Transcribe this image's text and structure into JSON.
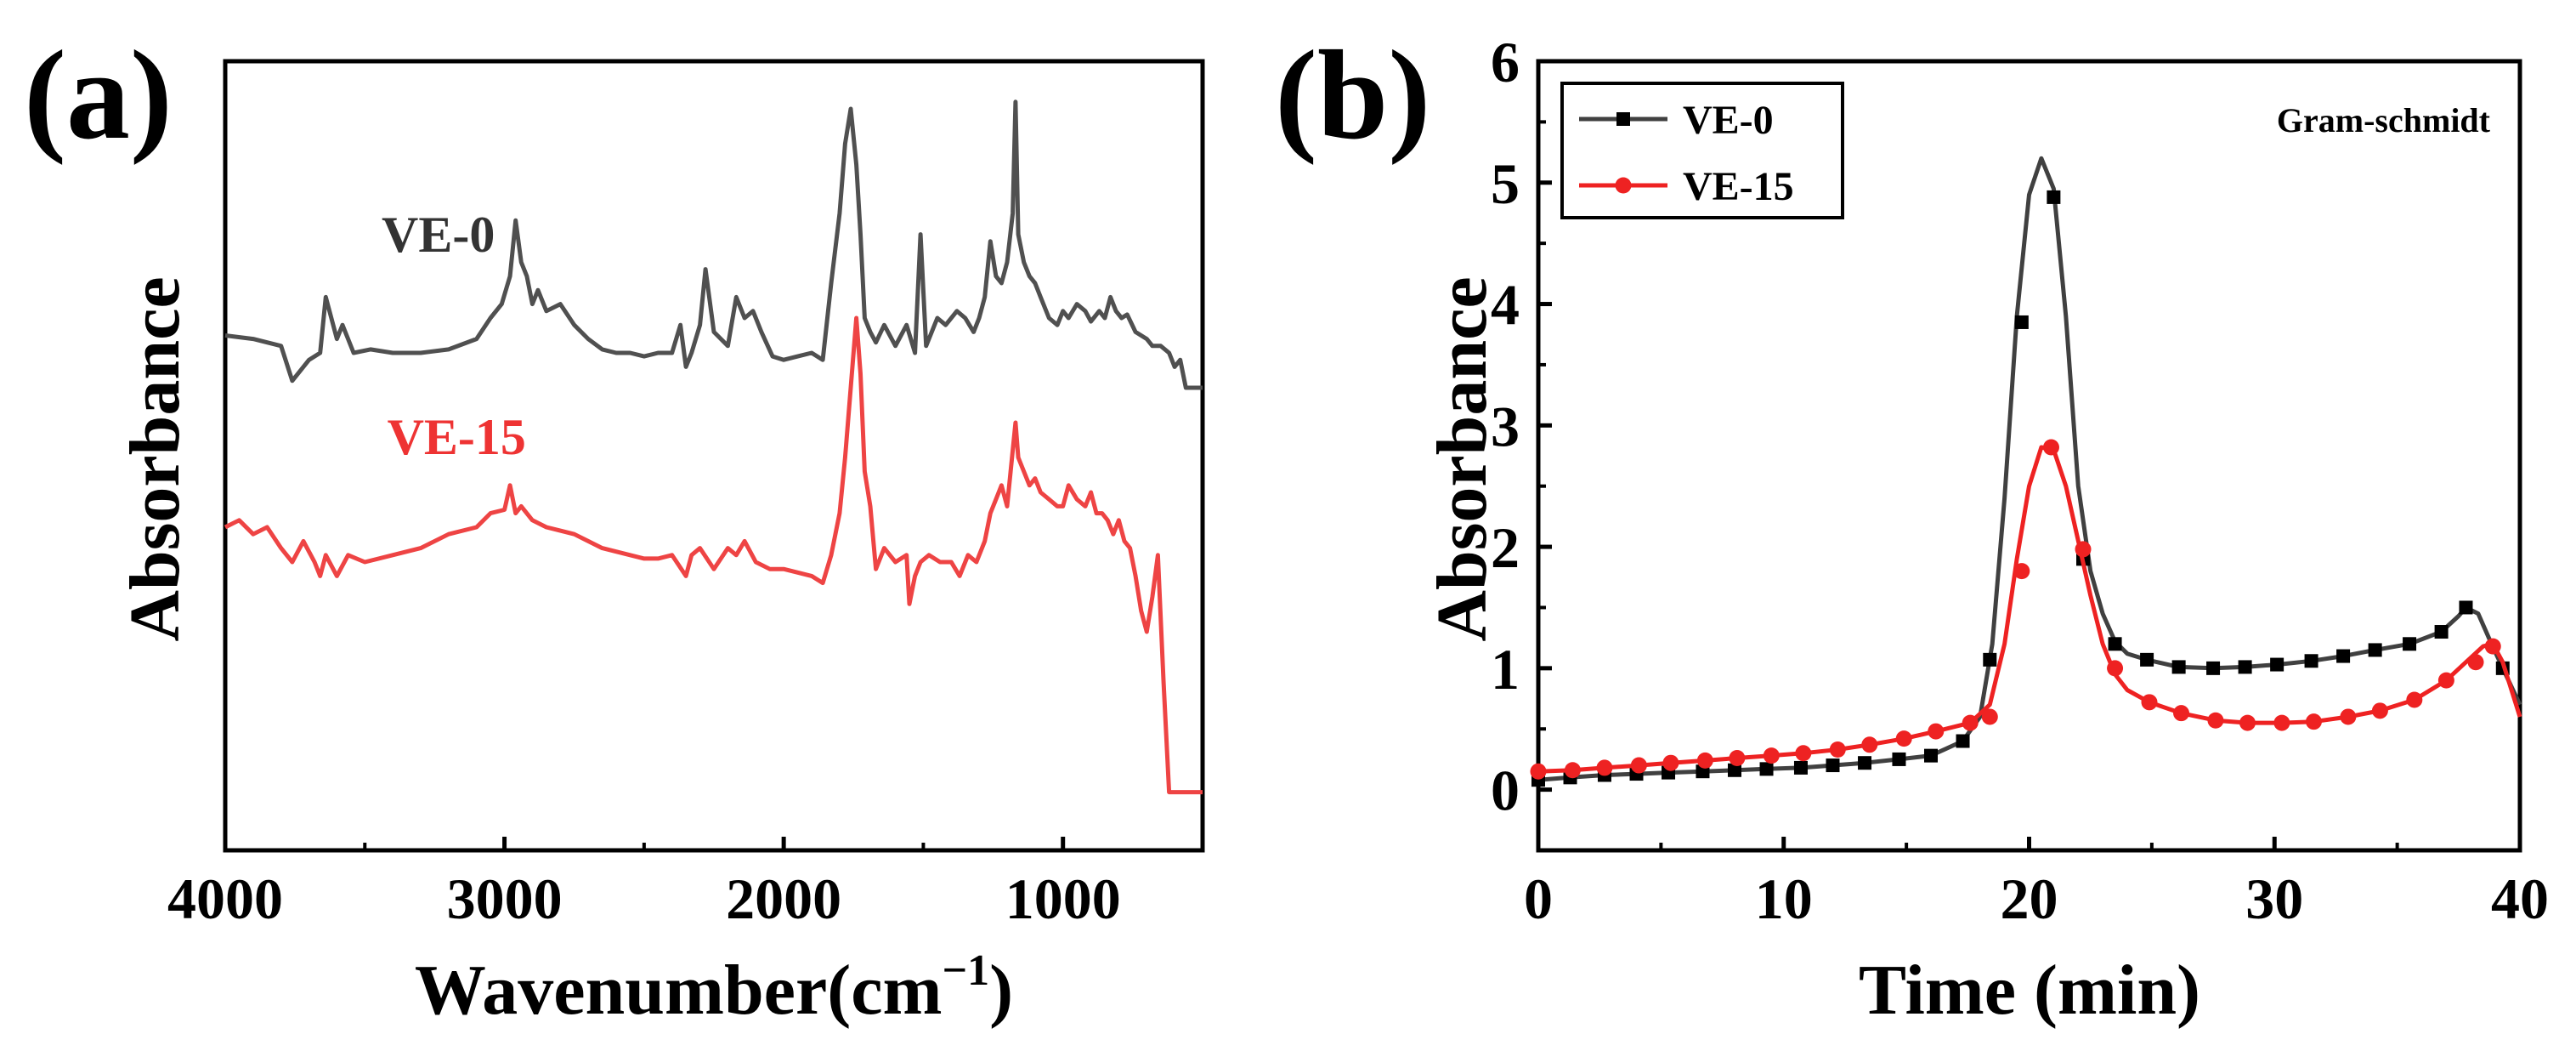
{
  "chart_data": [
    {
      "panel": "(a)",
      "type": "line",
      "xlabel": "Wavenumber(cm",
      "xlabel_sup": "−1",
      "xlabel_end": ")",
      "ylabel": "Absorbance",
      "xlim": [
        4000,
        500
      ],
      "xticks": [
        "4000",
        "3000",
        "2000",
        "1000"
      ],
      "xtick_values": [
        4000,
        3000,
        2000,
        1000
      ],
      "ylim": [
        0,
        10
      ],
      "yticks_shown": false,
      "series": [
        {
          "name": "VE-0",
          "color": "#505050",
          "x": [
            4000,
            3900,
            3800,
            3760,
            3700,
            3660,
            3640,
            3600,
            3580,
            3540,
            3480,
            3400,
            3300,
            3200,
            3100,
            3050,
            3010,
            2980,
            2960,
            2940,
            2920,
            2900,
            2880,
            2850,
            2800,
            2750,
            2700,
            2650,
            2600,
            2550,
            2500,
            2450,
            2400,
            2370,
            2350,
            2330,
            2300,
            2280,
            2250,
            2200,
            2170,
            2140,
            2110,
            2080,
            2040,
            2000,
            1950,
            1900,
            1860,
            1830,
            1800,
            1780,
            1760,
            1740,
            1725,
            1710,
            1690,
            1670,
            1640,
            1600,
            1560,
            1530,
            1510,
            1490,
            1470,
            1450,
            1420,
            1380,
            1350,
            1320,
            1300,
            1280,
            1260,
            1240,
            1220,
            1200,
            1180,
            1170,
            1160,
            1140,
            1120,
            1100,
            1080,
            1050,
            1020,
            1000,
            980,
            950,
            920,
            900,
            870,
            850,
            830,
            810,
            790,
            770,
            740,
            720,
            700,
            680,
            650,
            620,
            600,
            580,
            560,
            540,
            500
          ],
          "y": [
            6.75,
            6.7,
            6.6,
            6.1,
            6.4,
            6.5,
            7.3,
            6.7,
            6.9,
            6.5,
            6.55,
            6.5,
            6.5,
            6.55,
            6.7,
            7.0,
            7.2,
            7.6,
            8.4,
            7.8,
            7.6,
            7.2,
            7.4,
            7.1,
            7.2,
            6.9,
            6.7,
            6.55,
            6.5,
            6.5,
            6.45,
            6.5,
            6.5,
            6.9,
            6.3,
            6.5,
            6.9,
            7.7,
            6.8,
            6.6,
            7.3,
            7.0,
            7.1,
            6.8,
            6.45,
            6.4,
            6.45,
            6.5,
            6.4,
            7.5,
            8.5,
            9.5,
            10.0,
            9.2,
            8.2,
            7.0,
            6.8,
            6.65,
            6.9,
            6.6,
            6.9,
            6.5,
            8.2,
            6.6,
            6.8,
            7.0,
            6.9,
            7.1,
            7.0,
            6.8,
            7.0,
            7.3,
            8.1,
            7.6,
            7.5,
            7.8,
            8.5,
            10.1,
            8.2,
            7.8,
            7.6,
            7.5,
            7.3,
            7.0,
            6.9,
            7.1,
            7.0,
            7.2,
            7.1,
            6.95,
            7.1,
            7.0,
            7.3,
            7.1,
            7.0,
            7.05,
            6.8,
            6.75,
            6.7,
            6.6,
            6.6,
            6.5,
            6.3,
            6.4,
            6.0,
            6.0,
            6.0
          ]
        },
        {
          "name": "VE-15",
          "color": "#ee4444",
          "x": [
            4000,
            3950,
            3900,
            3850,
            3800,
            3760,
            3720,
            3680,
            3660,
            3640,
            3600,
            3560,
            3500,
            3400,
            3300,
            3200,
            3100,
            3050,
            3000,
            2980,
            2960,
            2940,
            2900,
            2850,
            2800,
            2750,
            2700,
            2650,
            2600,
            2550,
            2500,
            2450,
            2400,
            2350,
            2330,
            2300,
            2250,
            2200,
            2170,
            2140,
            2100,
            2050,
            2000,
            1950,
            1900,
            1860,
            1830,
            1800,
            1780,
            1760,
            1740,
            1725,
            1710,
            1690,
            1670,
            1640,
            1600,
            1560,
            1550,
            1530,
            1510,
            1480,
            1440,
            1400,
            1370,
            1340,
            1310,
            1280,
            1260,
            1240,
            1220,
            1200,
            1180,
            1170,
            1160,
            1140,
            1120,
            1100,
            1080,
            1050,
            1020,
            1000,
            980,
            950,
            920,
            900,
            880,
            860,
            840,
            820,
            800,
            780,
            760,
            740,
            720,
            700,
            680,
            660,
            640,
            620,
            600,
            580,
            560,
            540,
            500
          ],
          "y": [
            4.0,
            4.1,
            3.9,
            4.0,
            3.7,
            3.5,
            3.8,
            3.5,
            3.3,
            3.6,
            3.3,
            3.6,
            3.5,
            3.6,
            3.7,
            3.9,
            4.0,
            4.2,
            4.25,
            4.6,
            4.2,
            4.3,
            4.1,
            4.0,
            3.95,
            3.9,
            3.8,
            3.7,
            3.65,
            3.6,
            3.55,
            3.55,
            3.6,
            3.3,
            3.6,
            3.7,
            3.4,
            3.7,
            3.6,
            3.8,
            3.5,
            3.4,
            3.4,
            3.35,
            3.3,
            3.2,
            3.6,
            4.2,
            5.0,
            6.0,
            7.0,
            6.2,
            4.8,
            4.3,
            3.4,
            3.7,
            3.5,
            3.6,
            2.9,
            3.3,
            3.5,
            3.6,
            3.5,
            3.5,
            3.3,
            3.6,
            3.5,
            3.8,
            4.2,
            4.4,
            4.6,
            4.3,
            5.1,
            5.5,
            5.0,
            4.8,
            4.6,
            4.7,
            4.5,
            4.4,
            4.3,
            4.3,
            4.6,
            4.4,
            4.3,
            4.5,
            4.2,
            4.2,
            4.1,
            3.9,
            4.1,
            3.8,
            3.7,
            3.3,
            2.8,
            2.5,
            3.0,
            3.6,
            1.8,
            0.2,
            0.2,
            0.2,
            0.2,
            0.2,
            0.2
          ]
        }
      ],
      "annotations": [
        {
          "text": "VE-0",
          "color": "#333333",
          "x": 3440,
          "y": 7.95
        },
        {
          "text": "VE-15",
          "color": "#ee3333",
          "x": 3420,
          "y": 5.05
        }
      ]
    },
    {
      "panel": "(b)",
      "type": "line",
      "xlabel": "Time (min)",
      "ylabel": "Absorbance",
      "xlim": [
        0,
        40
      ],
      "ylim": [
        -0.5,
        6
      ],
      "xticks": [
        "0",
        "10",
        "20",
        "30",
        "40"
      ],
      "xtick_values": [
        0,
        10,
        20,
        30,
        40
      ],
      "yticks": [
        "0",
        "1",
        "2",
        "3",
        "4",
        "5",
        "6"
      ],
      "ytick_values": [
        0,
        1,
        2,
        3,
        4,
        5,
        6
      ],
      "annotation": "Gram-schmidt",
      "legend": {
        "position": "top-left",
        "entries": [
          "VE-0",
          "VE-15"
        ]
      },
      "series": [
        {
          "name": "VE-0",
          "color": "#404040",
          "marker": "square",
          "x": [
            0,
            1.3,
            2.7,
            4.0,
            5.3,
            6.7,
            8.0,
            9.3,
            10.7,
            12.0,
            13.3,
            14.7,
            16.0,
            17.3,
            18.0,
            18.5,
            19.0,
            19.5,
            20.0,
            20.5,
            21.0,
            21.5,
            22.0,
            22.5,
            23.0,
            23.5,
            24.0,
            24.8,
            26.1,
            27.5,
            28.8,
            30.1,
            31.5,
            32.8,
            34.1,
            35.5,
            36.8,
            37.5,
            37.8,
            38.3,
            38.8,
            39.3,
            40.0
          ],
          "y": [
            0.08,
            0.1,
            0.12,
            0.13,
            0.14,
            0.15,
            0.16,
            0.17,
            0.18,
            0.2,
            0.22,
            0.25,
            0.28,
            0.4,
            0.6,
            1.2,
            2.4,
            3.9,
            4.9,
            5.2,
            4.95,
            3.9,
            2.5,
            1.8,
            1.45,
            1.22,
            1.12,
            1.07,
            1.01,
            1.0,
            1.01,
            1.03,
            1.06,
            1.1,
            1.15,
            1.2,
            1.3,
            1.43,
            1.5,
            1.45,
            1.22,
            1.0,
            0.7
          ],
          "markers_x": [
            0,
            1.3,
            2.7,
            4.0,
            5.3,
            6.7,
            8.0,
            9.3,
            10.7,
            12.0,
            13.3,
            14.7,
            16.0,
            17.3,
            18.4,
            19.7,
            21.0,
            22.2,
            23.5,
            24.8,
            26.1,
            27.5,
            28.8,
            30.1,
            31.5,
            32.8,
            34.1,
            35.5,
            36.8,
            37.8,
            39.3
          ],
          "markers_y": [
            0.08,
            0.1,
            0.12,
            0.13,
            0.14,
            0.15,
            0.16,
            0.17,
            0.18,
            0.2,
            0.22,
            0.25,
            0.28,
            0.4,
            1.07,
            3.85,
            4.88,
            1.9,
            1.2,
            1.07,
            1.01,
            1.0,
            1.01,
            1.03,
            1.06,
            1.1,
            1.15,
            1.2,
            1.3,
            1.5,
            1.0
          ]
        },
        {
          "name": "VE-15",
          "color": "#ee2222",
          "marker": "circle",
          "x": [
            0,
            1.4,
            2.7,
            4.1,
            5.4,
            6.8,
            8.1,
            9.5,
            10.8,
            12.2,
            13.5,
            14.9,
            16.2,
            17.6,
            18.4,
            19.0,
            19.5,
            20.0,
            20.5,
            21.0,
            21.5,
            22.0,
            22.5,
            23.0,
            23.5,
            24.0,
            24.9,
            26.2,
            27.6,
            28.9,
            30.3,
            31.6,
            33.0,
            34.3,
            35.7,
            37.0,
            37.8,
            38.5,
            38.9,
            39.3,
            40.0
          ],
          "y": [
            0.15,
            0.16,
            0.18,
            0.2,
            0.22,
            0.24,
            0.26,
            0.28,
            0.3,
            0.33,
            0.37,
            0.42,
            0.48,
            0.55,
            0.7,
            1.2,
            1.9,
            2.5,
            2.82,
            2.8,
            2.5,
            2.05,
            1.6,
            1.2,
            0.95,
            0.82,
            0.72,
            0.63,
            0.57,
            0.55,
            0.55,
            0.56,
            0.6,
            0.65,
            0.74,
            0.9,
            1.05,
            1.18,
            1.2,
            1.05,
            0.6
          ],
          "markers_x": [
            0,
            1.4,
            2.7,
            4.1,
            5.4,
            6.8,
            8.1,
            9.5,
            10.8,
            12.2,
            13.5,
            14.9,
            16.2,
            17.6,
            18.4,
            19.7,
            20.9,
            22.2,
            23.5,
            24.9,
            26.2,
            27.6,
            28.9,
            30.3,
            31.6,
            33.0,
            34.3,
            35.7,
            37.0,
            38.2,
            38.9
          ],
          "markers_y": [
            0.15,
            0.16,
            0.18,
            0.2,
            0.22,
            0.24,
            0.26,
            0.28,
            0.3,
            0.33,
            0.37,
            0.42,
            0.48,
            0.55,
            0.6,
            1.8,
            2.82,
            1.98,
            1.0,
            0.72,
            0.63,
            0.57,
            0.55,
            0.55,
            0.56,
            0.6,
            0.65,
            0.74,
            0.9,
            1.05,
            1.18
          ]
        }
      ]
    }
  ]
}
